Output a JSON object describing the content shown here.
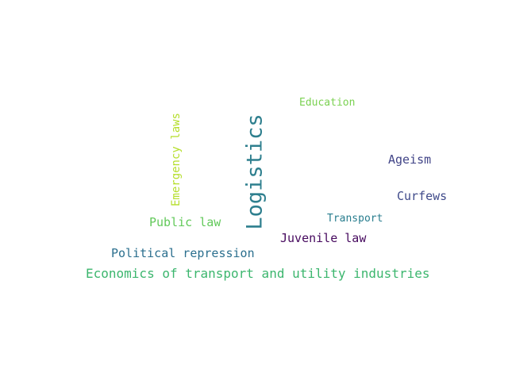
{
  "words": [
    {
      "text": "Logistics",
      "color": "#2e7f8e",
      "orientation": "vertical"
    },
    {
      "text": "Economics of transport and utility industries",
      "color": "#3cb66e",
      "orientation": "horizontal"
    },
    {
      "text": "Emergency laws",
      "color": "#b5de2b",
      "orientation": "vertical"
    },
    {
      "text": "Public law",
      "color": "#62c95a",
      "orientation": "horizontal"
    },
    {
      "text": "Political repression",
      "color": "#2b6f8e",
      "orientation": "horizontal"
    },
    {
      "text": "Juvenile law",
      "color": "#46095e",
      "orientation": "horizontal"
    },
    {
      "text": "Curfews",
      "color": "#3f4a8a",
      "orientation": "horizontal"
    },
    {
      "text": "Ageism",
      "color": "#414487",
      "orientation": "horizontal"
    },
    {
      "text": "Transport",
      "color": "#287d8e",
      "orientation": "horizontal"
    },
    {
      "text": "Education",
      "color": "#7ad151",
      "orientation": "horizontal"
    }
  ]
}
